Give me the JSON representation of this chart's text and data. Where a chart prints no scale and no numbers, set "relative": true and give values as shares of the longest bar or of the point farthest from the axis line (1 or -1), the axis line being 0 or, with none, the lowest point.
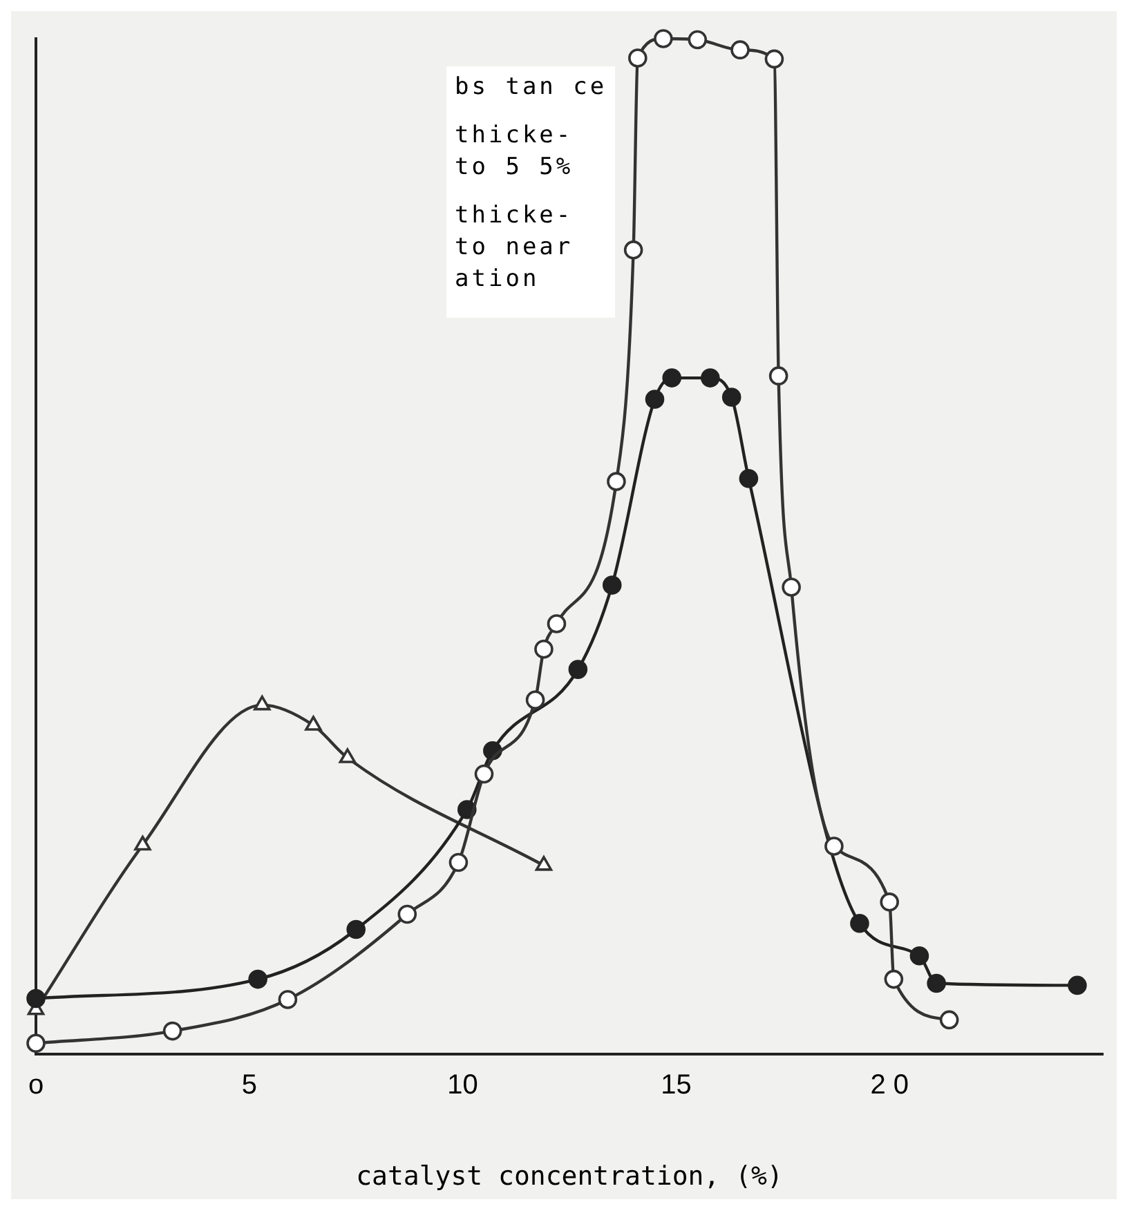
{
  "chart_data": {
    "type": "line",
    "relative": true,
    "xlabel": "catalyst concentration, (%)",
    "xlim": [
      0,
      25
    ],
    "xticks": [
      {
        "value": 0,
        "label": "o"
      },
      5,
      10,
      15,
      {
        "value": 20,
        "label": "2 0"
      }
    ],
    "grid": false,
    "legend": false,
    "line_style": "solid",
    "annotations": [
      "bs tan ce",
      "thicke-\nto 5 5%",
      "thicke-\nto near\nation"
    ],
    "series": [
      {
        "color": "#333333",
        "marker": "circle",
        "x": [
          0,
          3.2,
          5.9,
          8.7,
          9.9,
          10.5,
          11.7,
          11.9,
          12.2,
          13.6,
          14.0,
          14.1,
          14.7,
          15.5,
          16.5,
          17.3,
          17.4,
          17.7,
          18.7,
          20.0,
          20.1,
          21.4
        ],
        "values": [
          0.011,
          0.023,
          0.054,
          0.138,
          0.189,
          0.276,
          0.349,
          0.399,
          0.424,
          0.564,
          0.792,
          0.981,
          1,
          0.999,
          0.989,
          0.98,
          0.668,
          0.46,
          0.205,
          0.15,
          0.074,
          0.034
        ]
      },
      {
        "color": "#222222",
        "marker": "circle",
        "x": [
          0,
          5.2,
          7.5,
          10.1,
          10.7,
          12.7,
          13.5,
          14.5,
          14.9,
          15.8,
          16.3,
          16.7,
          19.3,
          20.7,
          21.1,
          24.4
        ],
        "values": [
          0.055,
          0.074,
          0.123,
          0.241,
          0.299,
          0.379,
          0.462,
          0.645,
          0.666,
          0.666,
          0.647,
          0.567,
          0.129,
          0.097,
          0.07,
          0.068
        ]
      },
      {
        "color": "#333333",
        "marker": "triangle",
        "x": [
          0,
          2.5,
          5.3,
          6.5,
          7.3,
          11.9
        ],
        "values": [
          0.044,
          0.206,
          0.344,
          0.324,
          0.292,
          0.186
        ]
      }
    ]
  }
}
